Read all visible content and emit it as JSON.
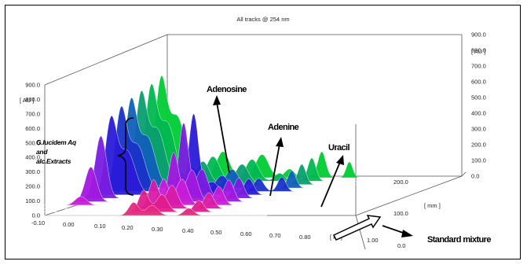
{
  "chart_data": {
    "type": "area",
    "title": "All tracks @ 254 nm",
    "x_axis": {
      "unit": "[ Rf ]",
      "ticks": [
        "-0.10",
        "0.00",
        "0.10",
        "0.20",
        "0.30",
        "0.40",
        "0.50",
        "0.60",
        "0.70",
        "0.80",
        "1.00"
      ]
    },
    "y_axis": {
      "unit": "[ AU ]",
      "ticks": [
        "0.0",
        "100.0",
        "200.0",
        "300.0",
        "400.0",
        "500.0",
        "600.0",
        "700.0",
        "800.0",
        "900.0"
      ],
      "range": [
        0,
        900
      ]
    },
    "z_axis": {
      "unit": "[ mm ]",
      "ticks": [
        "0.0",
        "100.0",
        "200.0"
      ]
    },
    "annotations": {
      "adenosine": "Adenosine",
      "adenine": "Adenine",
      "uracil": "Uracil",
      "standard": "Standard mixture",
      "extract_line1": "G.lucidem Aq",
      "extract_line2": "and",
      "extract_line3": "alc.Extracts"
    },
    "peaks": [
      {
        "name": "Adenosine",
        "rf": 0.42,
        "height_au": 560
      },
      {
        "name": "Adenine",
        "rf": 0.5,
        "height_au": 200
      },
      {
        "name": "Uracil",
        "rf": 0.66,
        "height_au": 150
      },
      {
        "name": "G.lucidem Aq and alc.Extracts",
        "rf": 0.18,
        "height_au": 660
      }
    ],
    "tracks": [
      {
        "color": "#00cc33",
        "peaks": [
          [
            0.06,
            640,
            0.035
          ],
          [
            0.13,
            420,
            0.05
          ],
          [
            0.33,
            180,
            0.04
          ],
          [
            0.5,
            160,
            0.04
          ],
          [
            0.62,
            60,
            0.03
          ],
          [
            0.76,
            180,
            0.025
          ],
          [
            0.88,
            110,
            0.02
          ]
        ]
      },
      {
        "color": "#00b850",
        "peaks": [
          [
            0.06,
            610,
            0.035
          ],
          [
            0.13,
            400,
            0.05
          ],
          [
            0.33,
            170,
            0.04
          ],
          [
            0.5,
            150,
            0.04
          ],
          [
            0.62,
            55,
            0.03
          ],
          [
            0.76,
            160,
            0.025
          ]
        ]
      },
      {
        "color": "#0a9e70",
        "peaks": [
          [
            0.06,
            590,
            0.035
          ],
          [
            0.13,
            380,
            0.05
          ],
          [
            0.33,
            160,
            0.04
          ],
          [
            0.5,
            140,
            0.04
          ],
          [
            0.76,
            140,
            0.025
          ]
        ]
      },
      {
        "color": "#1060b8",
        "peaks": [
          [
            0.06,
            570,
            0.035
          ],
          [
            0.13,
            350,
            0.05
          ],
          [
            0.33,
            140,
            0.04
          ],
          [
            0.5,
            130,
            0.04
          ],
          [
            0.76,
            120,
            0.025
          ]
        ]
      },
      {
        "color": "#1833c8",
        "peaks": [
          [
            0.06,
            540,
            0.035
          ],
          [
            0.13,
            320,
            0.05
          ],
          [
            0.33,
            130,
            0.04
          ],
          [
            0.5,
            110,
            0.04
          ],
          [
            0.66,
            90,
            0.03
          ],
          [
            0.76,
            100,
            0.025
          ]
        ]
      },
      {
        "color": "#2a1ad8",
        "peaks": [
          [
            0.06,
            500,
            0.035
          ],
          [
            0.13,
            300,
            0.05
          ],
          [
            0.42,
            560,
            0.03
          ],
          [
            0.5,
            90,
            0.04
          ],
          [
            0.66,
            110,
            0.03
          ]
        ]
      },
      {
        "color": "#7a1ce0",
        "peaks": [
          [
            0.06,
            430,
            0.035
          ],
          [
            0.42,
            520,
            0.03
          ],
          [
            0.5,
            200,
            0.035
          ],
          [
            0.66,
            140,
            0.03
          ]
        ]
      },
      {
        "color": "#a018e0",
        "peaks": [
          [
            0.06,
            240,
            0.035
          ],
          [
            0.42,
            340,
            0.03
          ],
          [
            0.5,
            220,
            0.035
          ],
          [
            0.66,
            150,
            0.03
          ]
        ]
      },
      {
        "color": "#c81cd8",
        "peaks": [
          [
            0.06,
            60,
            0.035
          ],
          [
            0.42,
            180,
            0.03
          ],
          [
            0.5,
            180,
            0.035
          ],
          [
            0.66,
            130,
            0.03
          ]
        ]
      },
      {
        "color": "#d81ca8",
        "peaks": [
          [
            0.42,
            200,
            0.03
          ],
          [
            0.5,
            160,
            0.035
          ],
          [
            0.66,
            110,
            0.03
          ]
        ]
      },
      {
        "color": "#e01c8c",
        "peaks": [
          [
            0.42,
            150,
            0.03
          ],
          [
            0.5,
            120,
            0.035
          ],
          [
            0.66,
            80,
            0.03
          ]
        ]
      },
      {
        "color": "#e02a80",
        "peaks": [
          [
            0.42,
            90,
            0.03
          ],
          [
            0.5,
            70,
            0.035
          ],
          [
            0.66,
            50,
            0.03
          ]
        ]
      }
    ]
  }
}
